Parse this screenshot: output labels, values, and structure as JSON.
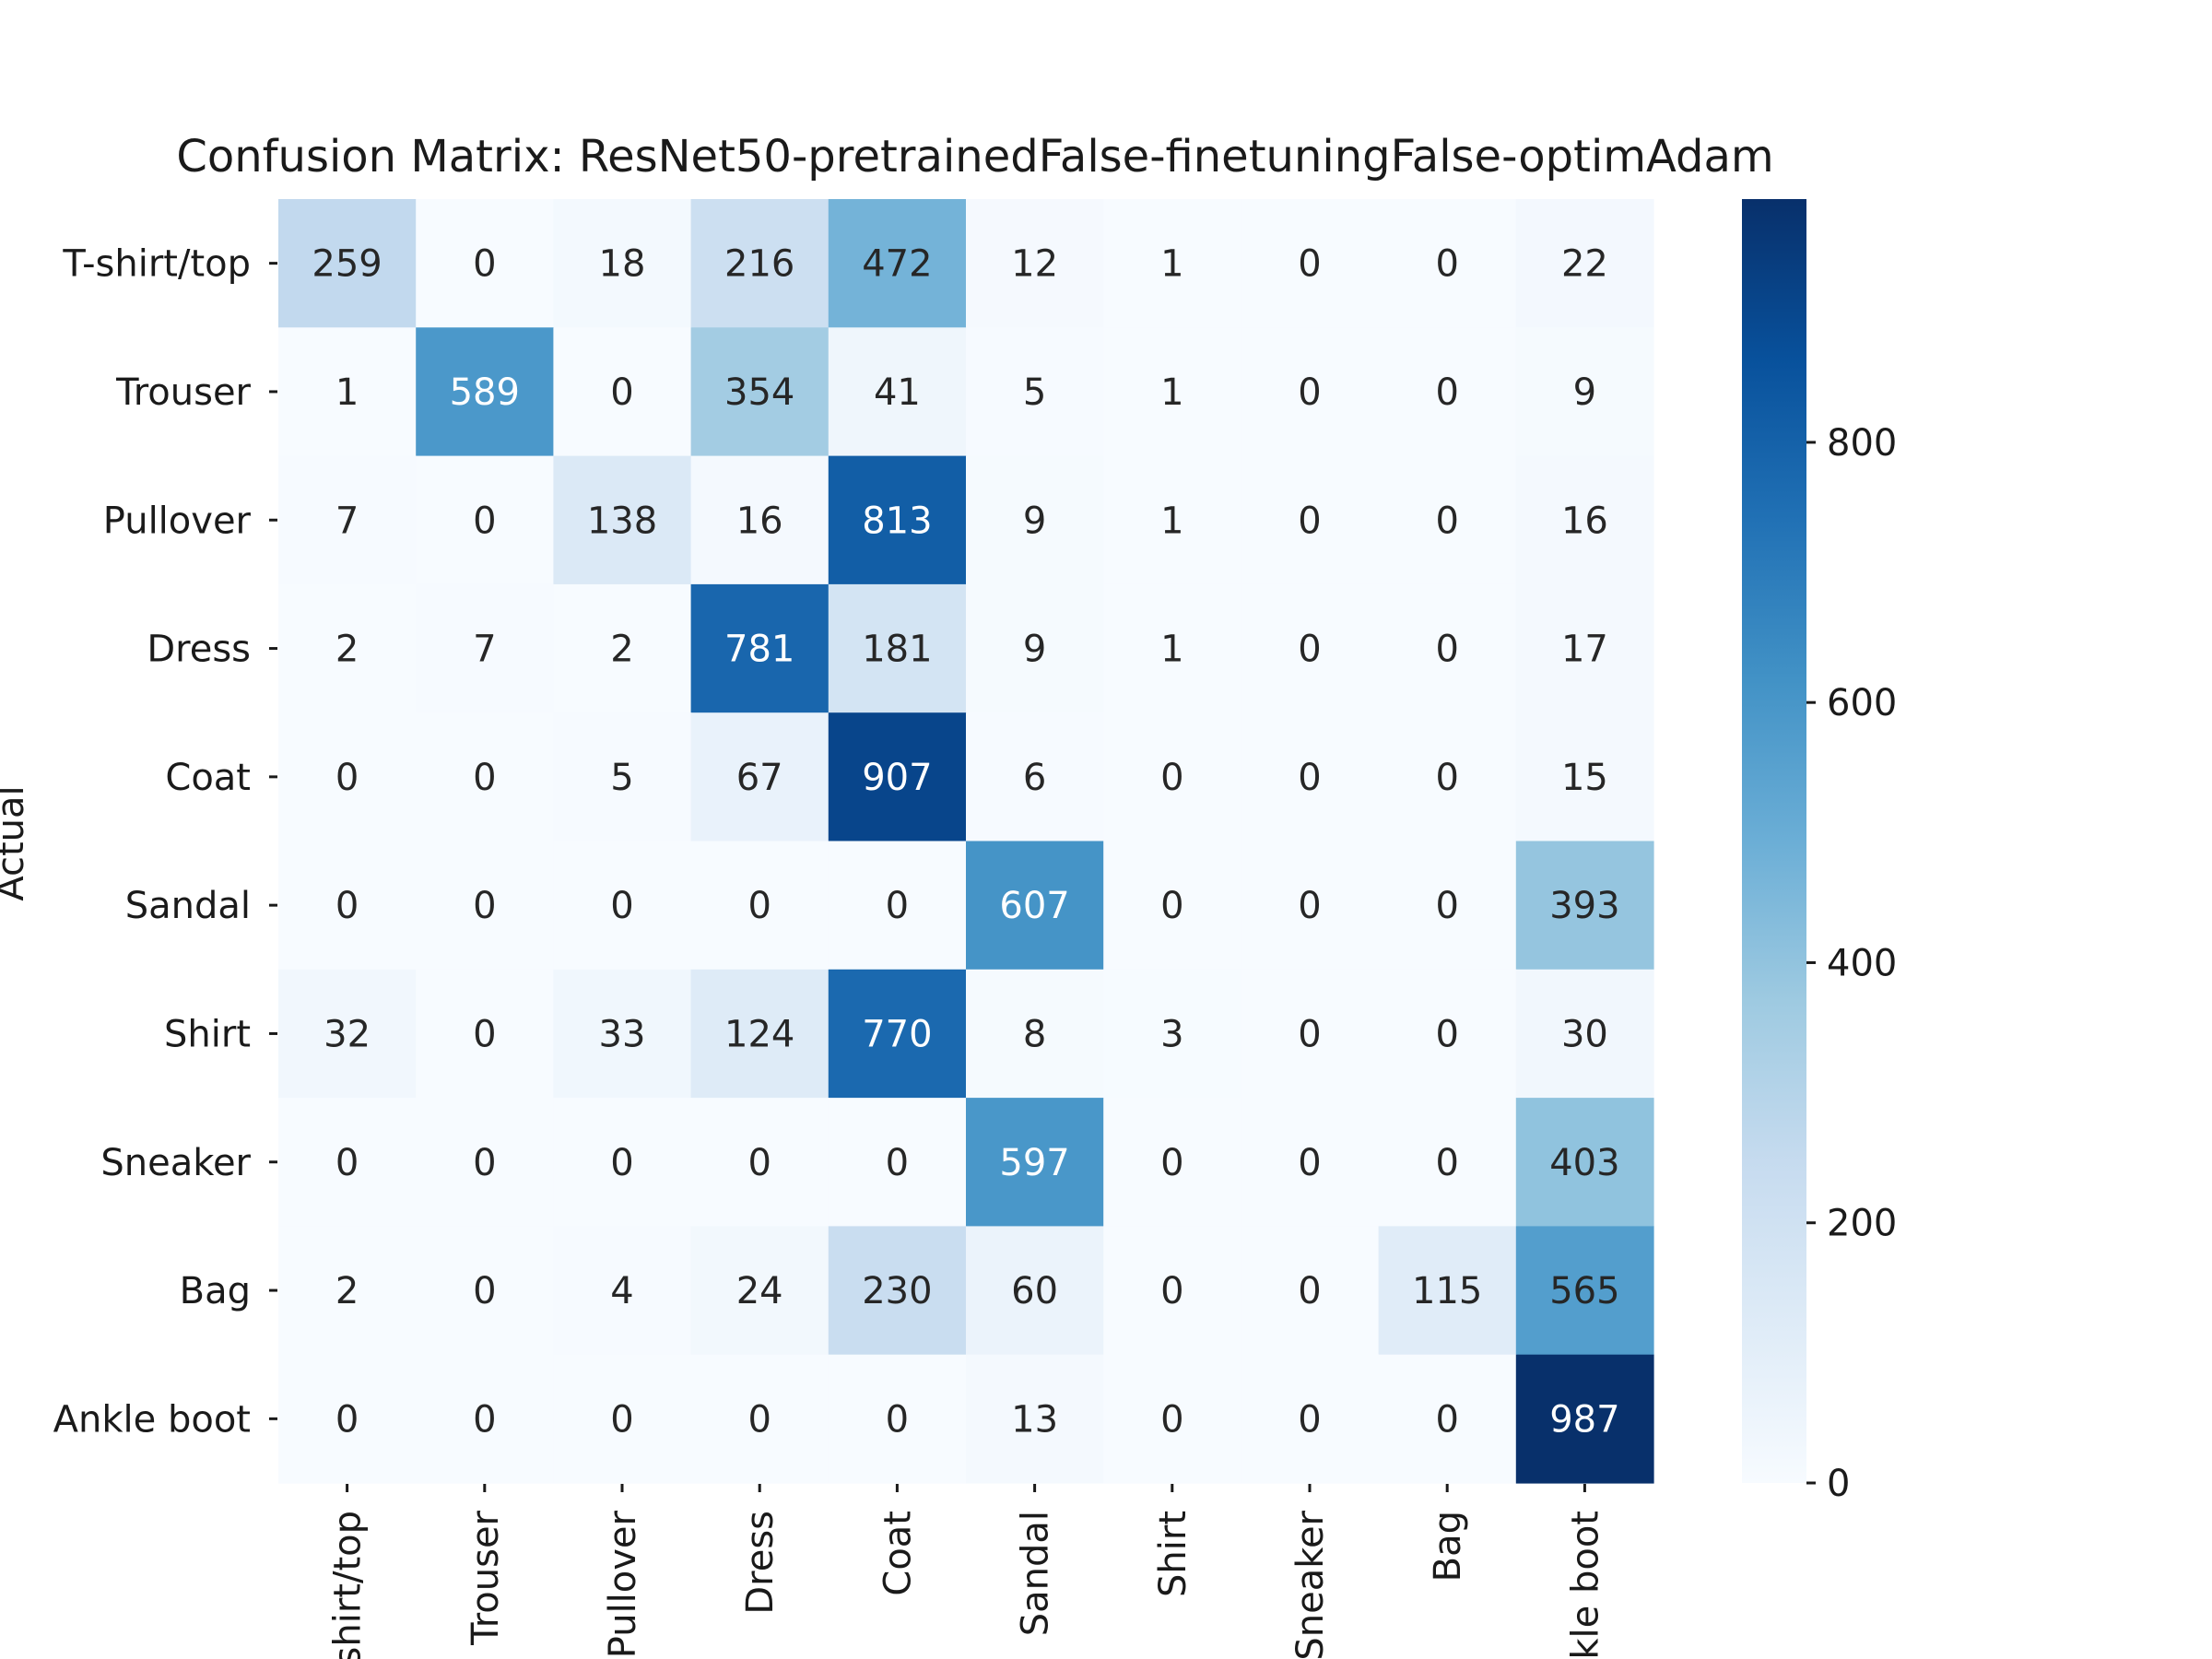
{
  "chart_data": {
    "type": "heatmap",
    "title": "Confusion Matrix: ResNet50-pretrainedFalse-finetuningFalse-optimAdam",
    "ylabel": "Actual",
    "xlabel": "",
    "row_labels": [
      "T-shirt/top",
      "Trouser",
      "Pullover",
      "Dress",
      "Coat",
      "Sandal",
      "Shirt",
      "Sneaker",
      "Bag",
      "Ankle boot"
    ],
    "col_labels": [
      "T-shirt/top",
      "Trouser",
      "Pullover",
      "Dress",
      "Coat",
      "Sandal",
      "Shirt",
      "Sneaker",
      "Bag",
      "Ankle boot"
    ],
    "values": [
      [
        259,
        0,
        18,
        216,
        472,
        12,
        1,
        0,
        0,
        22
      ],
      [
        1,
        589,
        0,
        354,
        41,
        5,
        1,
        0,
        0,
        9
      ],
      [
        7,
        0,
        138,
        16,
        813,
        9,
        1,
        0,
        0,
        16
      ],
      [
        2,
        7,
        2,
        781,
        181,
        9,
        1,
        0,
        0,
        17
      ],
      [
        0,
        0,
        5,
        67,
        907,
        6,
        0,
        0,
        0,
        15
      ],
      [
        0,
        0,
        0,
        0,
        0,
        607,
        0,
        0,
        0,
        393
      ],
      [
        32,
        0,
        33,
        124,
        770,
        8,
        3,
        0,
        0,
        30
      ],
      [
        0,
        0,
        0,
        0,
        0,
        597,
        0,
        0,
        0,
        403
      ],
      [
        2,
        0,
        4,
        24,
        230,
        60,
        0,
        0,
        115,
        565
      ],
      [
        0,
        0,
        0,
        0,
        0,
        13,
        0,
        0,
        0,
        987
      ]
    ],
    "colormap": "Blues",
    "color_low": "#f7fbff",
    "color_high": "#08306b",
    "vmin": 0,
    "vmax": 987,
    "colorbar_ticks": [
      0,
      200,
      400,
      600,
      800
    ],
    "grid": false
  }
}
